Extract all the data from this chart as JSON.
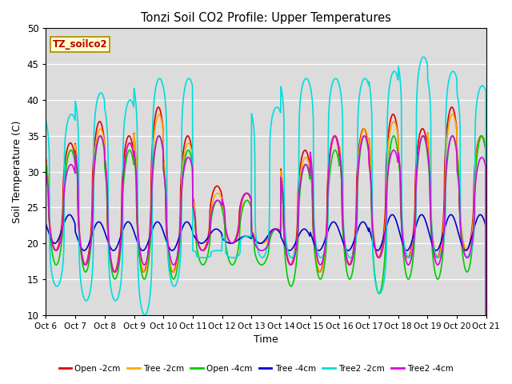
{
  "title": "Tonzi Soil CO2 Profile: Upper Temperatures",
  "xlabel": "Time",
  "ylabel": "Soil Temperature (C)",
  "ylim": [
    10,
    50
  ],
  "xlim": [
    0,
    15
  ],
  "annotation": "TZ_soilco2",
  "bg_color": "#dcdcdc",
  "fig_bg": "#ffffff",
  "series": [
    {
      "label": "Open -2cm",
      "color": "#dd0000",
      "lw": 1.2
    },
    {
      "label": "Tree -2cm",
      "color": "#ffaa00",
      "lw": 1.2
    },
    {
      "label": "Open -4cm",
      "color": "#00cc00",
      "lw": 1.2
    },
    {
      "label": "Tree -4cm",
      "color": "#0000cc",
      "lw": 1.2
    },
    {
      "label": "Tree2 -2cm",
      "color": "#00dddd",
      "lw": 1.2
    },
    {
      "label": "Tree2 -4cm",
      "color": "#dd00dd",
      "lw": 1.2
    }
  ],
  "xtick_labels": [
    "Oct 6",
    "Oct 7",
    "Oct 8",
    "Oct 9",
    "Oct 10",
    "Oct 11",
    "Oct 12",
    "Oct 13",
    "Oct 14",
    "Oct 15",
    "Oct 16",
    "Oct 17",
    "Oct 18",
    "Oct 19",
    "Oct 20",
    "Oct 21"
  ],
  "yticks": [
    10,
    15,
    20,
    25,
    30,
    35,
    40,
    45,
    50
  ],
  "day_peaks_open2": [
    34,
    37,
    35,
    39,
    35,
    28,
    27,
    22,
    33,
    35,
    36,
    38,
    36,
    39,
    35
  ],
  "day_troughs_open2": [
    19,
    17,
    16,
    16,
    16,
    19,
    20,
    20,
    17,
    16,
    17,
    18,
    18,
    18,
    19
  ],
  "day_peaks_tree2": [
    33,
    36,
    34,
    38,
    34,
    27,
    26,
    22,
    32,
    35,
    36,
    37,
    35,
    38,
    35
  ],
  "day_troughs_tree2": [
    19,
    17,
    16,
    16,
    16,
    19,
    20,
    20,
    17,
    16,
    17,
    18,
    18,
    18,
    19
  ],
  "day_peaks_open4": [
    33,
    35,
    33,
    35,
    33,
    26,
    26,
    22,
    31,
    33,
    35,
    35,
    35,
    35,
    35
  ],
  "day_troughs_open4": [
    17,
    16,
    15,
    15,
    15,
    17,
    17,
    17,
    14,
    15,
    15,
    13,
    15,
    15,
    16
  ],
  "day_peaks_tree4": [
    24,
    23,
    23,
    23,
    23,
    22,
    21,
    22,
    22,
    23,
    23,
    24,
    24,
    24,
    24
  ],
  "day_troughs_tree4": [
    20,
    19,
    19,
    19,
    19,
    20,
    20,
    20,
    19,
    19,
    19,
    19,
    19,
    19,
    19
  ],
  "day_peaks_tree2_2": [
    38,
    41,
    40,
    43,
    43,
    19,
    21,
    39,
    43,
    43,
    43,
    44,
    46,
    44,
    42
  ],
  "day_troughs_tree2_2": [
    14,
    12,
    12,
    10,
    14,
    18,
    18,
    18,
    18,
    18,
    18,
    13,
    18,
    18,
    18
  ],
  "day_peaks_tree2_4": [
    31,
    35,
    34,
    35,
    32,
    26,
    27,
    22,
    31,
    35,
    35,
    33,
    35,
    35,
    32
  ],
  "day_troughs_tree2_4": [
    19,
    17,
    16,
    17,
    17,
    19,
    20,
    19,
    17,
    17,
    17,
    18,
    17,
    17,
    18
  ]
}
